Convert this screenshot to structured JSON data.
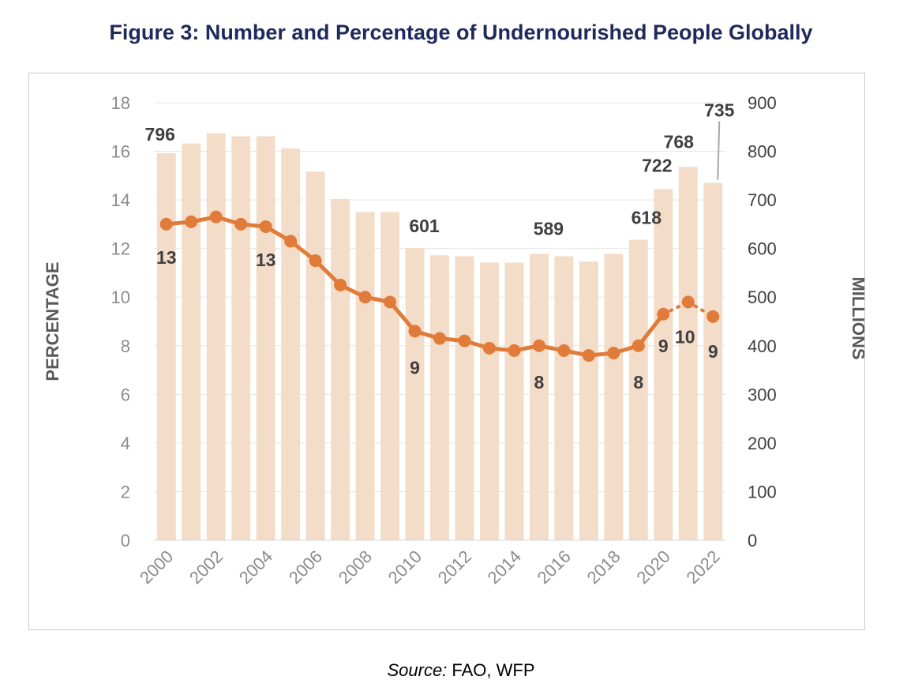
{
  "figure": {
    "title": "Figure 3: Number and Percentage of Undernourished People Globally",
    "source_label": "Source:",
    "source_text": " FAO, WFP"
  },
  "chart_data": {
    "type": "bar",
    "left_axis_label": "PERCENTAGE",
    "right_axis_label": "MILLIONS",
    "left_ylim": [
      0,
      18
    ],
    "right_ylim": [
      0,
      900
    ],
    "left_ticks": [
      0,
      2,
      4,
      6,
      8,
      10,
      12,
      14,
      16,
      18
    ],
    "right_ticks": [
      0,
      100,
      200,
      300,
      400,
      500,
      600,
      700,
      800,
      900
    ],
    "x_tick_labels": [
      "2000",
      "2002",
      "2004",
      "2006",
      "2008",
      "2010",
      "2012",
      "2014",
      "2016",
      "2018",
      "2020",
      "2022"
    ],
    "years": [
      2000,
      2001,
      2002,
      2003,
      2004,
      2005,
      2006,
      2007,
      2008,
      2009,
      2010,
      2011,
      2012,
      2013,
      2014,
      2015,
      2016,
      2017,
      2018,
      2019,
      2020,
      2021,
      2022
    ],
    "series": [
      {
        "kind": "bar",
        "axis": "right",
        "values": [
          796,
          816,
          837,
          831,
          831,
          806,
          758,
          702,
          675,
          675,
          601,
          586,
          584,
          571,
          571,
          589,
          584,
          573,
          589,
          618,
          722,
          768,
          735
        ],
        "color": "#f3dcc8",
        "data_labels": [
          {
            "year": 2000,
            "text": "796"
          },
          {
            "year": 2010,
            "text": "601"
          },
          {
            "year": 2015,
            "text": "589"
          },
          {
            "year": 2019,
            "text": "618"
          },
          {
            "year": 2020,
            "text": "722"
          },
          {
            "year": 2021,
            "text": "768"
          },
          {
            "year": 2022,
            "text": "735"
          }
        ]
      },
      {
        "kind": "line",
        "axis": "left",
        "values": [
          13.0,
          13.1,
          13.3,
          13.0,
          12.9,
          12.3,
          11.5,
          10.5,
          10.0,
          9.8,
          8.6,
          8.3,
          8.2,
          7.9,
          7.8,
          8.0,
          7.8,
          7.6,
          7.7,
          8.0,
          9.3,
          9.8,
          9.2
        ],
        "color": "#e07b39",
        "dotted_from_year": 2020,
        "data_labels": [
          {
            "year": 2000,
            "text": "13"
          },
          {
            "year": 2004,
            "text": "13"
          },
          {
            "year": 2010,
            "text": "9"
          },
          {
            "year": 2015,
            "text": "8"
          },
          {
            "year": 2019,
            "text": "8"
          },
          {
            "year": 2020,
            "text": "9"
          },
          {
            "year": 2021,
            "text": "10"
          },
          {
            "year": 2022,
            "text": "9"
          }
        ]
      }
    ],
    "grid": true
  }
}
